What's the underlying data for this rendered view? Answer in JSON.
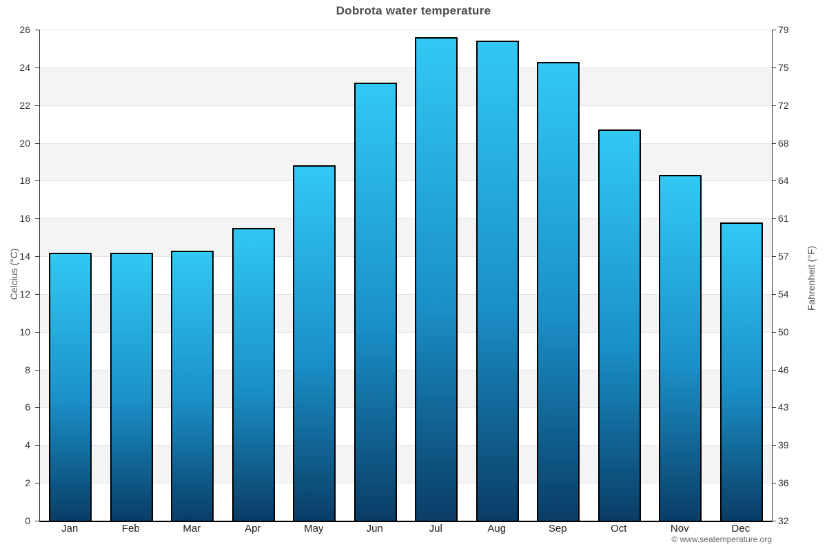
{
  "page": {
    "title": "Dobrota water temperature",
    "copyright": "© www.seatemperature.org"
  },
  "chart_data": {
    "type": "bar",
    "title": "Dobrota water temperature",
    "categories": [
      "Jan",
      "Feb",
      "Mar",
      "Apr",
      "May",
      "Jun",
      "Jul",
      "Aug",
      "Sep",
      "Oct",
      "Nov",
      "Dec"
    ],
    "values": [
      14.2,
      14.2,
      14.3,
      15.5,
      18.8,
      23.2,
      25.6,
      25.4,
      24.3,
      20.7,
      18.3,
      15.8
    ],
    "ylabel_left": "Celcius (°C)",
    "ylabel_right": "Fahrenheit (°F)",
    "ylim_celsius": [
      0,
      26
    ],
    "yticks_celsius": [
      0,
      2,
      4,
      6,
      8,
      10,
      12,
      14,
      16,
      18,
      20,
      22,
      24,
      26
    ],
    "yticks_fahrenheit": [
      32,
      36,
      39,
      43,
      46,
      50,
      54,
      57,
      61,
      64,
      68,
      72,
      75,
      79
    ],
    "xlabel": "",
    "legend": "none",
    "grid": "horizontal gridlines with alternating white/gray bands every 2°C",
    "colors": {
      "bar_gradient_top": "#32c8f4",
      "bar_gradient_bottom": "#0a3d66",
      "bar_border": "#000000",
      "band_gray": "#f4f4f4",
      "band_white": "#ffffff",
      "gridline": "#e3e3e3",
      "axis_line": "#333333",
      "title_text": "#4a4a4a",
      "tick_text": "#333333",
      "axis_title_text": "#555555",
      "copyright_text": "#666666"
    }
  }
}
